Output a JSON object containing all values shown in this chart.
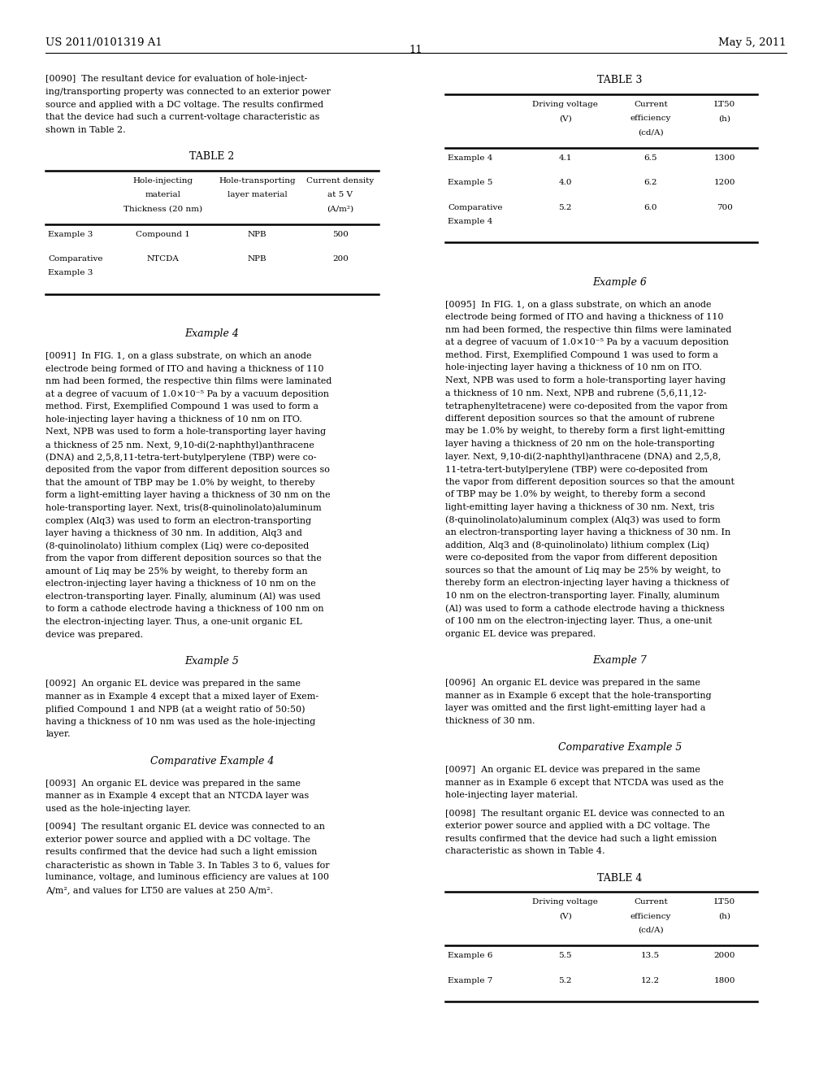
{
  "background_color": "#ffffff",
  "page_header_left": "US 2011/0101319 A1",
  "page_header_right": "May 5, 2011",
  "page_number": "11",
  "para_0090": "[0090]  The resultant device for evaluation of hole-inject-\ning/transporting property was connected to an exterior power\nsource and applied with a DC voltage. The results confirmed\nthat the device had such a current-voltage characteristic as\nshown in Table 2.",
  "table2_title": "TABLE 2",
  "table2_headers": [
    "",
    "Hole-injecting\nmaterial\nThickness (20 nm)",
    "Hole-transporting\nlayer material",
    "Current density\nat 5 V\n(A/m²)"
  ],
  "table2_rows": [
    [
      "Example 3",
      "Compound 1",
      "NPB",
      "500"
    ],
    [
      "Comparative\nExample 3",
      "NTCDA",
      "NPB",
      "200"
    ]
  ],
  "section_ex4": "Example 4",
  "para_0091": "[0091]  In FIG. 1, on a glass substrate, on which an anode\nelectrode being formed of ITO and having a thickness of 110\nnm had been formed, the respective thin films were laminated\nat a degree of vacuum of 1.0×10⁻⁵ Pa by a vacuum deposition\nmethod. First, Exemplified Compound 1 was used to form a\nhole-injecting layer having a thickness of 10 nm on ITO.\nNext, NPB was used to form a hole-transporting layer having\na thickness of 25 nm. Next, 9,10-di(2-naphthyl)anthracene\n(DNA) and 2,5,8,11-tetra-tert-butylperylene (TBP) were co-\ndeposited from the vapor from different deposition sources so\nthat the amount of TBP may be 1.0% by weight, to thereby\nform a light-emitting layer having a thickness of 30 nm on the\nhole-transporting layer. Next, tris(8-quinolinolato)aluminum\ncomplex (Alq3) was used to form an electron-transporting\nlayer having a thickness of 30 nm. In addition, Alq3 and\n(8-quinolinolato) lithium complex (Liq) were co-deposited\nfrom the vapor from different deposition sources so that the\namount of Liq may be 25% by weight, to thereby form an\nelectron-injecting layer having a thickness of 10 nm on the\nelectron-transporting layer. Finally, aluminum (Al) was used\nto form a cathode electrode having a thickness of 100 nm on\nthe electron-injecting layer. Thus, a one-unit organic EL\ndevice was prepared.",
  "section_ex5": "Example 5",
  "para_0092": "[0092]  An organic EL device was prepared in the same\nmanner as in Example 4 except that a mixed layer of Exem-\nplified Compound 1 and NPB (at a weight ratio of 50:50)\nhaving a thickness of 10 nm was used as the hole-injecting\nlayer.",
  "section_comp4": "Comparative Example 4",
  "para_0093": "[0093]  An organic EL device was prepared in the same\nmanner as in Example 4 except that an NTCDA layer was\nused as the hole-injecting layer.",
  "para_0094": "[0094]  The resultant organic EL device was connected to an\nexterior power source and applied with a DC voltage. The\nresults confirmed that the device had such a light emission\ncharacteristic as shown in Table 3. In Tables 3 to 6, values for\nluminance, voltage, and luminous efficiency are values at 100\nA/m², and values for LT50 are values at 250 A/m².",
  "table3_title": "TABLE 3",
  "table3_headers": [
    "",
    "Driving voltage\n(V)",
    "Current\nefficiency\n(cd/A)",
    "LT50\n(h)"
  ],
  "table3_rows": [
    [
      "Example 4",
      "4.1",
      "6.5",
      "1300"
    ],
    [
      "Example 5",
      "4.0",
      "6.2",
      "1200"
    ],
    [
      "Comparative\nExample 4",
      "5.2",
      "6.0",
      "700"
    ]
  ],
  "section_ex6": "Example 6",
  "para_0095": "[0095]  In FIG. 1, on a glass substrate, on which an anode\nelectrode being formed of ITO and having a thickness of 110\nnm had been formed, the respective thin films were laminated\nat a degree of vacuum of 1.0×10⁻⁵ Pa by a vacuum deposition\nmethod. First, Exemplified Compound 1 was used to form a\nhole-injecting layer having a thickness of 10 nm on ITO.\nNext, NPB was used to form a hole-transporting layer having\na thickness of 10 nm. Next, NPB and rubrene (5,6,11,12-\ntetraphenyltetracene) were co-deposited from the vapor from\ndifferent deposition sources so that the amount of rubrene\nmay be 1.0% by weight, to thereby form a first light-emitting\nlayer having a thickness of 20 nm on the hole-transporting\nlayer. Next, 9,10-di(2-naphthyl)anthracene (DNA) and 2,5,8,\n11-tetra-tert-butylperylene (TBP) were co-deposited from\nthe vapor from different deposition sources so that the amount\nof TBP may be 1.0% by weight, to thereby form a second\nlight-emitting layer having a thickness of 30 nm. Next, tris\n(8-quinolinolato)aluminum complex (Alq3) was used to form\nan electron-transporting layer having a thickness of 30 nm. In\naddition, Alq3 and (8-quinolinolato) lithium complex (Liq)\nwere co-deposited from the vapor from different deposition\nsources so that the amount of Liq may be 25% by weight, to\nthereby form an electron-injecting layer having a thickness of\n10 nm on the electron-transporting layer. Finally, aluminum\n(Al) was used to form a cathode electrode having a thickness\nof 100 nm on the electron-injecting layer. Thus, a one-unit\norganic EL device was prepared.",
  "section_ex7": "Example 7",
  "para_0096": "[0096]  An organic EL device was prepared in the same\nmanner as in Example 6 except that the hole-transporting\nlayer was omitted and the first light-emitting layer had a\nthickness of 30 nm.",
  "section_comp5": "Comparative Example 5",
  "para_0097": "[0097]  An organic EL device was prepared in the same\nmanner as in Example 6 except that NTCDA was used as the\nhole-injecting layer material.",
  "para_0098": "[0098]  The resultant organic EL device was connected to an\nexterior power source and applied with a DC voltage. The\nresults confirmed that the device had such a light emission\ncharacteristic as shown in Table 4.",
  "table4_title": "TABLE 4",
  "table4_headers": [
    "",
    "Driving voltage\n(V)",
    "Current\nefficiency\n(cd/A)",
    "LT50\n(h)"
  ],
  "table4_rows": [
    [
      "Example 6",
      "5.5",
      "13.5",
      "2000"
    ],
    [
      "Example 7",
      "5.2",
      "12.2",
      "1800"
    ]
  ],
  "font_body": 8.0,
  "font_section": 9.0,
  "font_table_title": 9.0,
  "font_table_cell": 7.5,
  "font_header": 9.5
}
